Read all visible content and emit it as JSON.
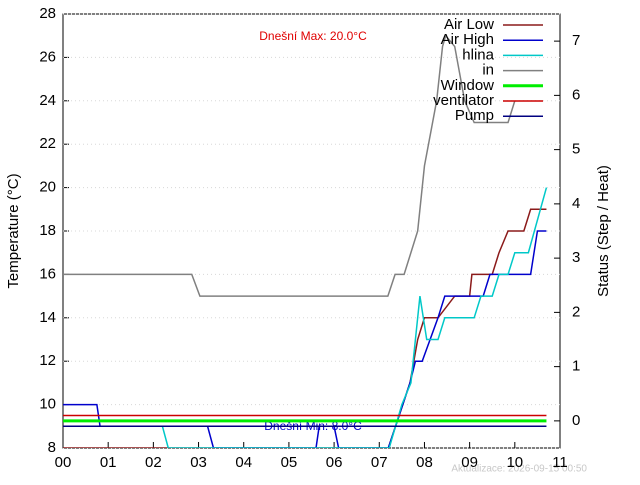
{
  "chart_data": {
    "type": "line",
    "y_label": "Temperature (°C)",
    "y2_label": "Status (Step / Heat)",
    "annotations": {
      "max": "Dnešní Max: 20.0°C",
      "min": "Dnešní Min: 8.0°C",
      "updated": "Aktualizace: 2026-09-15 00:50"
    },
    "xlim": [
      0,
      11
    ],
    "xticks": [
      {
        "value": 0,
        "label": "00"
      },
      {
        "value": 1,
        "label": "01"
      },
      {
        "value": 2,
        "label": "02"
      },
      {
        "value": 3,
        "label": "03"
      },
      {
        "value": 4,
        "label": "04"
      },
      {
        "value": 5,
        "label": "05"
      },
      {
        "value": 6,
        "label": "06"
      },
      {
        "value": 7,
        "label": "07"
      },
      {
        "value": 8,
        "label": "08"
      },
      {
        "value": 9,
        "label": "09"
      },
      {
        "value": 10,
        "label": "10"
      },
      {
        "value": 11,
        "label": "11"
      }
    ],
    "ylim": [
      8,
      28
    ],
    "yticks": [
      8,
      10,
      12,
      14,
      16,
      18,
      20,
      22,
      24,
      26,
      28
    ],
    "y2lim": [
      -0.5,
      7.5
    ],
    "y2ticks": [
      0,
      1,
      2,
      3,
      4,
      5,
      6,
      7
    ],
    "grid": "y",
    "legend": "top-right",
    "series": [
      {
        "name": "Air Low",
        "color": "#8b1a1a",
        "x": [
          0,
          7.2,
          7.68,
          7.85,
          8.0,
          8.3,
          8.67,
          9.0,
          9.05,
          9.5,
          9.65,
          9.85,
          10.2,
          10.35,
          10.7
        ],
        "values": [
          8,
          8,
          11,
          13,
          14,
          14,
          15,
          15,
          16,
          16,
          17,
          18,
          18,
          19,
          19
        ]
      },
      {
        "name": "Air High",
        "color": "#0000cc",
        "x": [
          0,
          0.75,
          0.82,
          3.2,
          3.33,
          5.6,
          5.67,
          6.0,
          6.1,
          7.2,
          7.68,
          7.8,
          7.95,
          8.3,
          8.45,
          9.3,
          9.45,
          10.35,
          10.5,
          10.7
        ],
        "values": [
          10,
          10,
          9,
          9,
          8,
          8,
          9,
          9,
          8,
          8,
          11,
          12,
          12,
          14,
          15,
          15,
          16,
          16,
          18,
          18
        ]
      },
      {
        "name": "hlina",
        "color": "#00c8c8",
        "x": [
          0,
          2.2,
          2.33,
          7.22,
          7.5,
          7.7,
          7.9,
          8.05,
          8.3,
          8.45,
          9.1,
          9.25,
          9.5,
          9.65,
          9.85,
          10.0,
          10.3,
          10.7
        ],
        "values": [
          9,
          9,
          8,
          8,
          10,
          11,
          15,
          13,
          13,
          14,
          14,
          15,
          15,
          16,
          16,
          17,
          17,
          20
        ]
      },
      {
        "name": "in",
        "color": "#808080",
        "x": [
          0,
          2.85,
          3.03,
          7.19,
          7.35,
          7.55,
          7.85,
          8.0,
          8.27,
          8.4,
          8.47,
          8.67,
          8.89,
          9.1,
          9.85,
          10.0
        ],
        "values": [
          16,
          16,
          15,
          15,
          16,
          16,
          18,
          21,
          24,
          26.5,
          27,
          26.5,
          24,
          23,
          23,
          24
        ]
      },
      {
        "name": "Window",
        "color": "#00ee00",
        "line_width": 3,
        "axis": "y2",
        "x": [
          0,
          10.7
        ],
        "values": [
          0,
          0
        ]
      },
      {
        "name": "ventilator",
        "color": "#cc0000",
        "axis": "y2",
        "x": [
          0,
          10.7
        ],
        "values": [
          0.1,
          0.1
        ]
      },
      {
        "name": "Pump",
        "color": "#000080",
        "axis": "y2",
        "x": [
          0,
          10.7
        ],
        "values": [
          -0.1,
          -0.1
        ]
      }
    ]
  }
}
